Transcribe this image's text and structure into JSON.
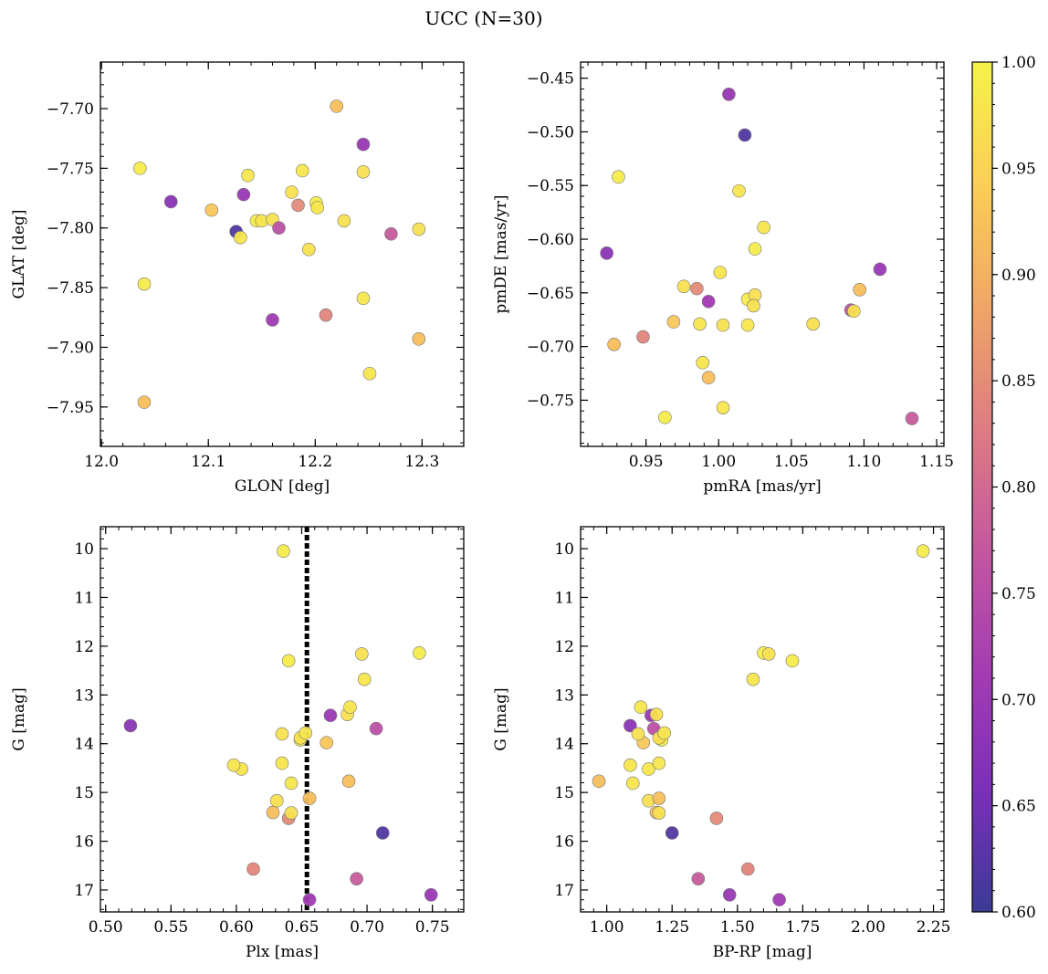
{
  "title": "UCC (N=30)",
  "colorbar": {
    "min": 0.6,
    "max": 1.0,
    "ticks": [
      "0.60",
      "0.65",
      "0.70",
      "0.75",
      "0.80",
      "0.85",
      "0.90",
      "0.95",
      "1.00"
    ],
    "colormap": "plasma-like",
    "stops": [
      "#3b3b95",
      "#7a2fb8",
      "#a43bb3",
      "#c256a1",
      "#dd7c82",
      "#f0a566",
      "#fbcf56",
      "#f5f24a"
    ]
  },
  "stars": [
    {
      "glon": 12.036,
      "glat": -7.75,
      "pmra": 0.931,
      "pmde": -0.542,
      "plx": 0.636,
      "g": 10.05,
      "bprp": 2.21,
      "p": 0.99
    },
    {
      "glon": 12.04,
      "glat": -7.847,
      "pmra": 0.963,
      "pmde": -0.766,
      "plx": 0.74,
      "g": 12.14,
      "bprp": 1.6,
      "p": 0.99
    },
    {
      "glon": 12.04,
      "glat": -7.946,
      "pmra": 0.928,
      "pmde": -0.698,
      "plx": 0.686,
      "g": 14.77,
      "bprp": 0.97,
      "p": 0.92
    },
    {
      "glon": 12.065,
      "glat": -7.778,
      "pmra": 0.923,
      "pmde": -0.613,
      "plx": 0.519,
      "g": 13.63,
      "bprp": 1.09,
      "p": 0.68
    },
    {
      "glon": 12.103,
      "glat": -7.785,
      "pmra": 0.969,
      "pmde": -0.677,
      "plx": 0.669,
      "g": 13.98,
      "bprp": 1.14,
      "p": 0.93
    },
    {
      "glon": 12.126,
      "glat": -7.803,
      "pmra": 1.018,
      "pmde": -0.503,
      "plx": 0.712,
      "g": 15.83,
      "bprp": 1.25,
      "p": 0.62
    },
    {
      "glon": 12.13,
      "glat": -7.808,
      "pmra": 0.987,
      "pmde": -0.679,
      "plx": 0.604,
      "g": 14.52,
      "bprp": 1.16,
      "p": 0.98
    },
    {
      "glon": 12.133,
      "glat": -7.772,
      "pmra": 1.111,
      "pmde": -0.628,
      "plx": 0.749,
      "g": 17.1,
      "bprp": 1.47,
      "p": 0.7
    },
    {
      "glon": 12.137,
      "glat": -7.756,
      "pmra": 1.001,
      "pmde": -0.631,
      "plx": 0.598,
      "g": 14.44,
      "bprp": 1.09,
      "p": 0.98
    },
    {
      "glon": 12.145,
      "glat": -7.794,
      "pmra": 1.02,
      "pmde": -0.656,
      "plx": 0.649,
      "g": 13.92,
      "bprp": 1.21,
      "p": 0.99
    },
    {
      "glon": 12.15,
      "glat": -7.794,
      "pmra": 1.02,
      "pmde": -0.68,
      "plx": 0.635,
      "g": 14.4,
      "bprp": 1.2,
      "p": 0.98
    },
    {
      "glon": 12.16,
      "glat": -7.793,
      "pmra": 1.003,
      "pmde": -0.68,
      "plx": 0.631,
      "g": 15.17,
      "bprp": 1.16,
      "p": 0.97
    },
    {
      "glon": 12.16,
      "glat": -7.877,
      "pmra": 0.993,
      "pmde": -0.658,
      "plx": 0.656,
      "g": 17.2,
      "bprp": 1.66,
      "p": 0.71
    },
    {
      "glon": 12.166,
      "glat": -7.8,
      "pmra": 1.091,
      "pmde": -0.666,
      "plx": 0.707,
      "g": 13.69,
      "bprp": 1.18,
      "p": 0.76
    },
    {
      "glon": 12.178,
      "glat": -7.77,
      "pmra": 1.025,
      "pmde": -0.652,
      "plx": 0.635,
      "g": 13.8,
      "bprp": 1.12,
      "p": 0.97
    },
    {
      "glon": 12.184,
      "glat": -7.781,
      "pmra": 0.985,
      "pmde": -0.646,
      "plx": 0.64,
      "g": 15.53,
      "bprp": 1.42,
      "p": 0.85
    },
    {
      "glon": 12.188,
      "glat": -7.752,
      "pmra": 1.014,
      "pmde": -0.555,
      "plx": 0.698,
      "g": 12.68,
      "bprp": 1.56,
      "p": 0.98
    },
    {
      "glon": 12.194,
      "glat": -7.818,
      "pmra": 1.024,
      "pmde": -0.662,
      "plx": 0.649,
      "g": 13.88,
      "bprp": 1.2,
      "p": 0.97
    },
    {
      "glon": 12.201,
      "glat": -7.779,
      "pmra": 1.025,
      "pmde": -0.609,
      "plx": 0.64,
      "g": 12.3,
      "bprp": 1.71,
      "p": 0.99
    },
    {
      "glon": 12.202,
      "glat": -7.783,
      "pmra": 1.031,
      "pmde": -0.589,
      "plx": 0.653,
      "g": 13.78,
      "bprp": 1.22,
      "p": 0.98
    },
    {
      "glon": 12.21,
      "glat": -7.873,
      "pmra": 0.948,
      "pmde": -0.691,
      "plx": 0.613,
      "g": 16.57,
      "bprp": 1.54,
      "p": 0.84
    },
    {
      "glon": 12.22,
      "glat": -7.698,
      "pmra": 1.097,
      "pmde": -0.647,
      "plx": 0.628,
      "g": 15.41,
      "bprp": 1.19,
      "p": 0.92
    },
    {
      "glon": 12.227,
      "glat": -7.794,
      "pmra": 0.976,
      "pmde": -0.644,
      "plx": 0.642,
      "g": 15.42,
      "bprp": 1.2,
      "p": 0.97
    },
    {
      "glon": 12.245,
      "glat": -7.73,
      "pmra": 1.007,
      "pmde": -0.465,
      "plx": 0.672,
      "g": 13.42,
      "bprp": 1.17,
      "p": 0.7
    },
    {
      "glon": 12.245,
      "glat": -7.753,
      "pmra": 1.065,
      "pmde": -0.679,
      "plx": 0.685,
      "g": 13.4,
      "bprp": 1.19,
      "p": 0.97
    },
    {
      "glon": 12.245,
      "glat": -7.859,
      "pmra": 0.989,
      "pmde": -0.715,
      "plx": 0.642,
      "g": 14.81,
      "bprp": 1.1,
      "p": 0.98
    },
    {
      "glon": 12.251,
      "glat": -7.922,
      "pmra": 1.003,
      "pmde": -0.757,
      "plx": 0.687,
      "g": 13.25,
      "bprp": 1.13,
      "p": 0.98
    },
    {
      "glon": 12.271,
      "glat": -7.805,
      "pmra": 1.133,
      "pmde": -0.767,
      "plx": 0.692,
      "g": 16.77,
      "bprp": 1.35,
      "p": 0.78
    },
    {
      "glon": 12.297,
      "glat": -7.893,
      "pmra": 0.993,
      "pmde": -0.729,
      "plx": 0.656,
      "g": 15.12,
      "bprp": 1.2,
      "p": 0.92
    },
    {
      "glon": 12.297,
      "glat": -7.801,
      "pmra": 1.093,
      "pmde": -0.667,
      "plx": 0.696,
      "g": 12.16,
      "bprp": 1.62,
      "p": 0.97
    }
  ],
  "chart_data": [
    {
      "type": "scatter",
      "xkey": "glon",
      "ykey": "glat",
      "xlabel": "GLON [deg]",
      "ylabel": "GLAT [deg]",
      "xlim": [
        11.999,
        12.339
      ],
      "ylim": [
        -7.983,
        -7.661
      ],
      "xticks": [
        {
          "v": 12.0,
          "t": "12.0"
        },
        {
          "v": 12.1,
          "t": "12.1"
        },
        {
          "v": 12.2,
          "t": "12.2"
        },
        {
          "v": 12.3,
          "t": "12.3"
        }
      ],
      "yticks": [
        {
          "v": -7.7,
          "t": "−7.70"
        },
        {
          "v": -7.75,
          "t": "−7.75"
        },
        {
          "v": -7.8,
          "t": "−7.80"
        },
        {
          "v": -7.85,
          "t": "−7.85"
        },
        {
          "v": -7.9,
          "t": "−7.90"
        },
        {
          "v": -7.95,
          "t": "−7.95"
        }
      ],
      "xminor": 0.02,
      "yminor": 0.01
    },
    {
      "type": "scatter",
      "xkey": "pmra",
      "ykey": "pmde",
      "xlabel": "pmRA [mas/yr]",
      "ylabel": "pmDE [mas/yr]",
      "xlim": [
        0.905,
        1.155
      ],
      "ylim": [
        -0.793,
        -0.435
      ],
      "xticks": [
        {
          "v": 0.95,
          "t": "0.95"
        },
        {
          "v": 1.0,
          "t": "1.00"
        },
        {
          "v": 1.05,
          "t": "1.05"
        },
        {
          "v": 1.1,
          "t": "1.10"
        },
        {
          "v": 1.15,
          "t": "1.15"
        }
      ],
      "yticks": [
        {
          "v": -0.45,
          "t": "−0.45"
        },
        {
          "v": -0.5,
          "t": "−0.50"
        },
        {
          "v": -0.55,
          "t": "−0.55"
        },
        {
          "v": -0.6,
          "t": "−0.60"
        },
        {
          "v": -0.65,
          "t": "−0.65"
        },
        {
          "v": -0.7,
          "t": "−0.70"
        },
        {
          "v": -0.75,
          "t": "−0.75"
        }
      ],
      "xminor": 0.01,
      "yminor": 0.01
    },
    {
      "type": "scatter",
      "xkey": "plx",
      "ykey": "g",
      "xlabel": "Plx [mas]",
      "ylabel": "G [mag]",
      "xlim": [
        0.496,
        0.774
      ],
      "ylim": [
        17.45,
        9.55
      ],
      "xticks": [
        {
          "v": 0.5,
          "t": "0.50"
        },
        {
          "v": 0.55,
          "t": "0.55"
        },
        {
          "v": 0.6,
          "t": "0.60"
        },
        {
          "v": 0.65,
          "t": "0.65"
        },
        {
          "v": 0.7,
          "t": "0.70"
        },
        {
          "v": 0.75,
          "t": "0.75"
        }
      ],
      "yticks": [
        {
          "v": 10,
          "t": "10"
        },
        {
          "v": 11,
          "t": "11"
        },
        {
          "v": 12,
          "t": "12"
        },
        {
          "v": 13,
          "t": "13"
        },
        {
          "v": 14,
          "t": "14"
        },
        {
          "v": 15,
          "t": "15"
        },
        {
          "v": 16,
          "t": "16"
        },
        {
          "v": 17,
          "t": "17"
        }
      ],
      "xminor": 0.01,
      "yminor": 0.2,
      "vline": 0.654
    },
    {
      "type": "scatter",
      "xkey": "bprp",
      "ykey": "g",
      "xlabel": "BP-RP [mag]",
      "ylabel": "G [mag]",
      "xlim": [
        0.9,
        2.29
      ],
      "ylim": [
        17.45,
        9.55
      ],
      "xticks": [
        {
          "v": 1.0,
          "t": "1.00"
        },
        {
          "v": 1.25,
          "t": "1.25"
        },
        {
          "v": 1.5,
          "t": "1.50"
        },
        {
          "v": 1.75,
          "t": "1.75"
        },
        {
          "v": 2.0,
          "t": "2.00"
        },
        {
          "v": 2.25,
          "t": "2.25"
        }
      ],
      "yticks": [
        {
          "v": 10,
          "t": "10"
        },
        {
          "v": 11,
          "t": "11"
        },
        {
          "v": 12,
          "t": "12"
        },
        {
          "v": 13,
          "t": "13"
        },
        {
          "v": 14,
          "t": "14"
        },
        {
          "v": 15,
          "t": "15"
        },
        {
          "v": 16,
          "t": "16"
        },
        {
          "v": 17,
          "t": "17"
        }
      ],
      "xminor": 0.05,
      "yminor": 0.2
    }
  ]
}
